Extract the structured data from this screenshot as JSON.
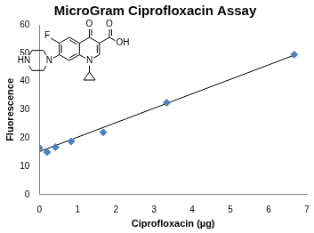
{
  "chart_data": {
    "type": "scatter",
    "title": "MicroGram Ciprofloxacin Assay",
    "x_label": "Ciprofloxacin (µg)",
    "y_label": "Fluorescence",
    "series": [
      {
        "type": "scatter",
        "color": "#4f81bd",
        "marker": "diamond",
        "x": [
          0,
          0.2,
          0.42,
          0.83,
          1.67,
          3.33,
          6.67
        ],
        "values": [
          16.5,
          15,
          16.8,
          18.8,
          22,
          32.5,
          49.5
        ]
      },
      {
        "type": "line",
        "color": "#000000",
        "line_style": "solid",
        "x": [
          0,
          6.67
        ],
        "values": [
          15.2,
          49.3
        ]
      }
    ],
    "annotations": [
      "O",
      "O",
      "OH",
      "F",
      "N",
      "N",
      "HN"
    ],
    "xlim": [
      0,
      7
    ],
    "xticks": [
      0,
      1,
      2,
      3,
      4,
      5,
      6,
      7
    ],
    "ylim": [
      0,
      60
    ],
    "yticks": [
      0,
      10,
      20,
      30,
      40,
      50,
      60
    ],
    "grid": false
  }
}
